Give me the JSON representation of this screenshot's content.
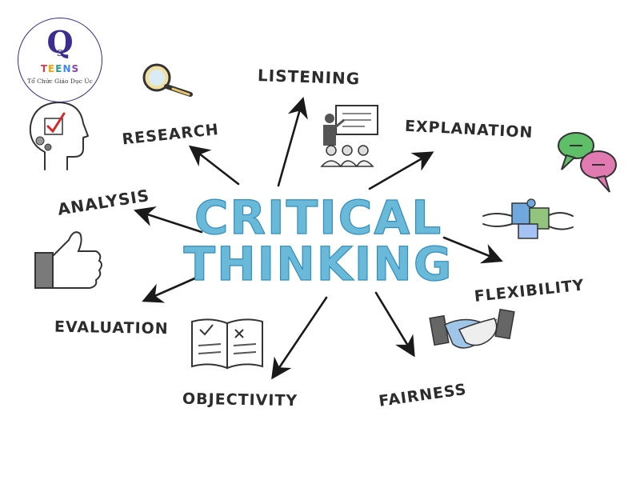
{
  "logo": {
    "mark": "Q",
    "mark_small": "S",
    "teens_letters": [
      "T",
      "E",
      "E",
      "N",
      "S"
    ],
    "subtitle": "Tổ Chức Giáo Dục Úc"
  },
  "center": {
    "line1": "CRITICAL",
    "line2": "THINKING",
    "color": "#6bb9d9"
  },
  "skills": [
    {
      "id": "listening",
      "label": "LISTENING",
      "icon": "presentation-icon"
    },
    {
      "id": "research",
      "label": "RESEARCH",
      "icon": "magnifier-icon"
    },
    {
      "id": "explanation",
      "label": "EXPLANATION",
      "icon": "speech-bubbles-icon"
    },
    {
      "id": "analysis",
      "label": "ANALYSIS",
      "icon": "head-gears-icon"
    },
    {
      "id": "flexibility",
      "label": "FLEXIBILITY",
      "icon": "puzzle-hands-icon"
    },
    {
      "id": "evaluation",
      "label": "EVALUATION",
      "icon": "thumbs-up-icon"
    },
    {
      "id": "objectivity",
      "label": "OBJECTIVITY",
      "icon": "open-book-icon"
    },
    {
      "id": "fairness",
      "label": "FAIRNESS",
      "icon": "handshake-icon"
    }
  ]
}
